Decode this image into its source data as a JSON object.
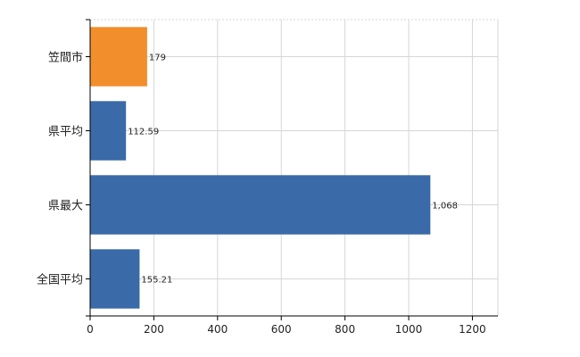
{
  "chart_data": {
    "type": "bar",
    "orientation": "horizontal",
    "categories": [
      "笠間市",
      "県平均",
      "県最大",
      "全国平均"
    ],
    "values": [
      179,
      112.59,
      1068,
      155.21
    ],
    "data_labels": [
      "179",
      "112.59",
      "1,068",
      "155.21"
    ],
    "highlight_index": 0,
    "title": "",
    "xlabel": "",
    "ylabel": "",
    "xlim": [
      0,
      1280
    ],
    "x_ticks": [
      0,
      200,
      400,
      600,
      800,
      1000,
      1200
    ],
    "grid": true,
    "legend": "none"
  },
  "colors": {
    "highlight": "#F28E2B",
    "default": "#3A6AA8",
    "grid": "#d6d6d6",
    "axis": "#000000"
  }
}
